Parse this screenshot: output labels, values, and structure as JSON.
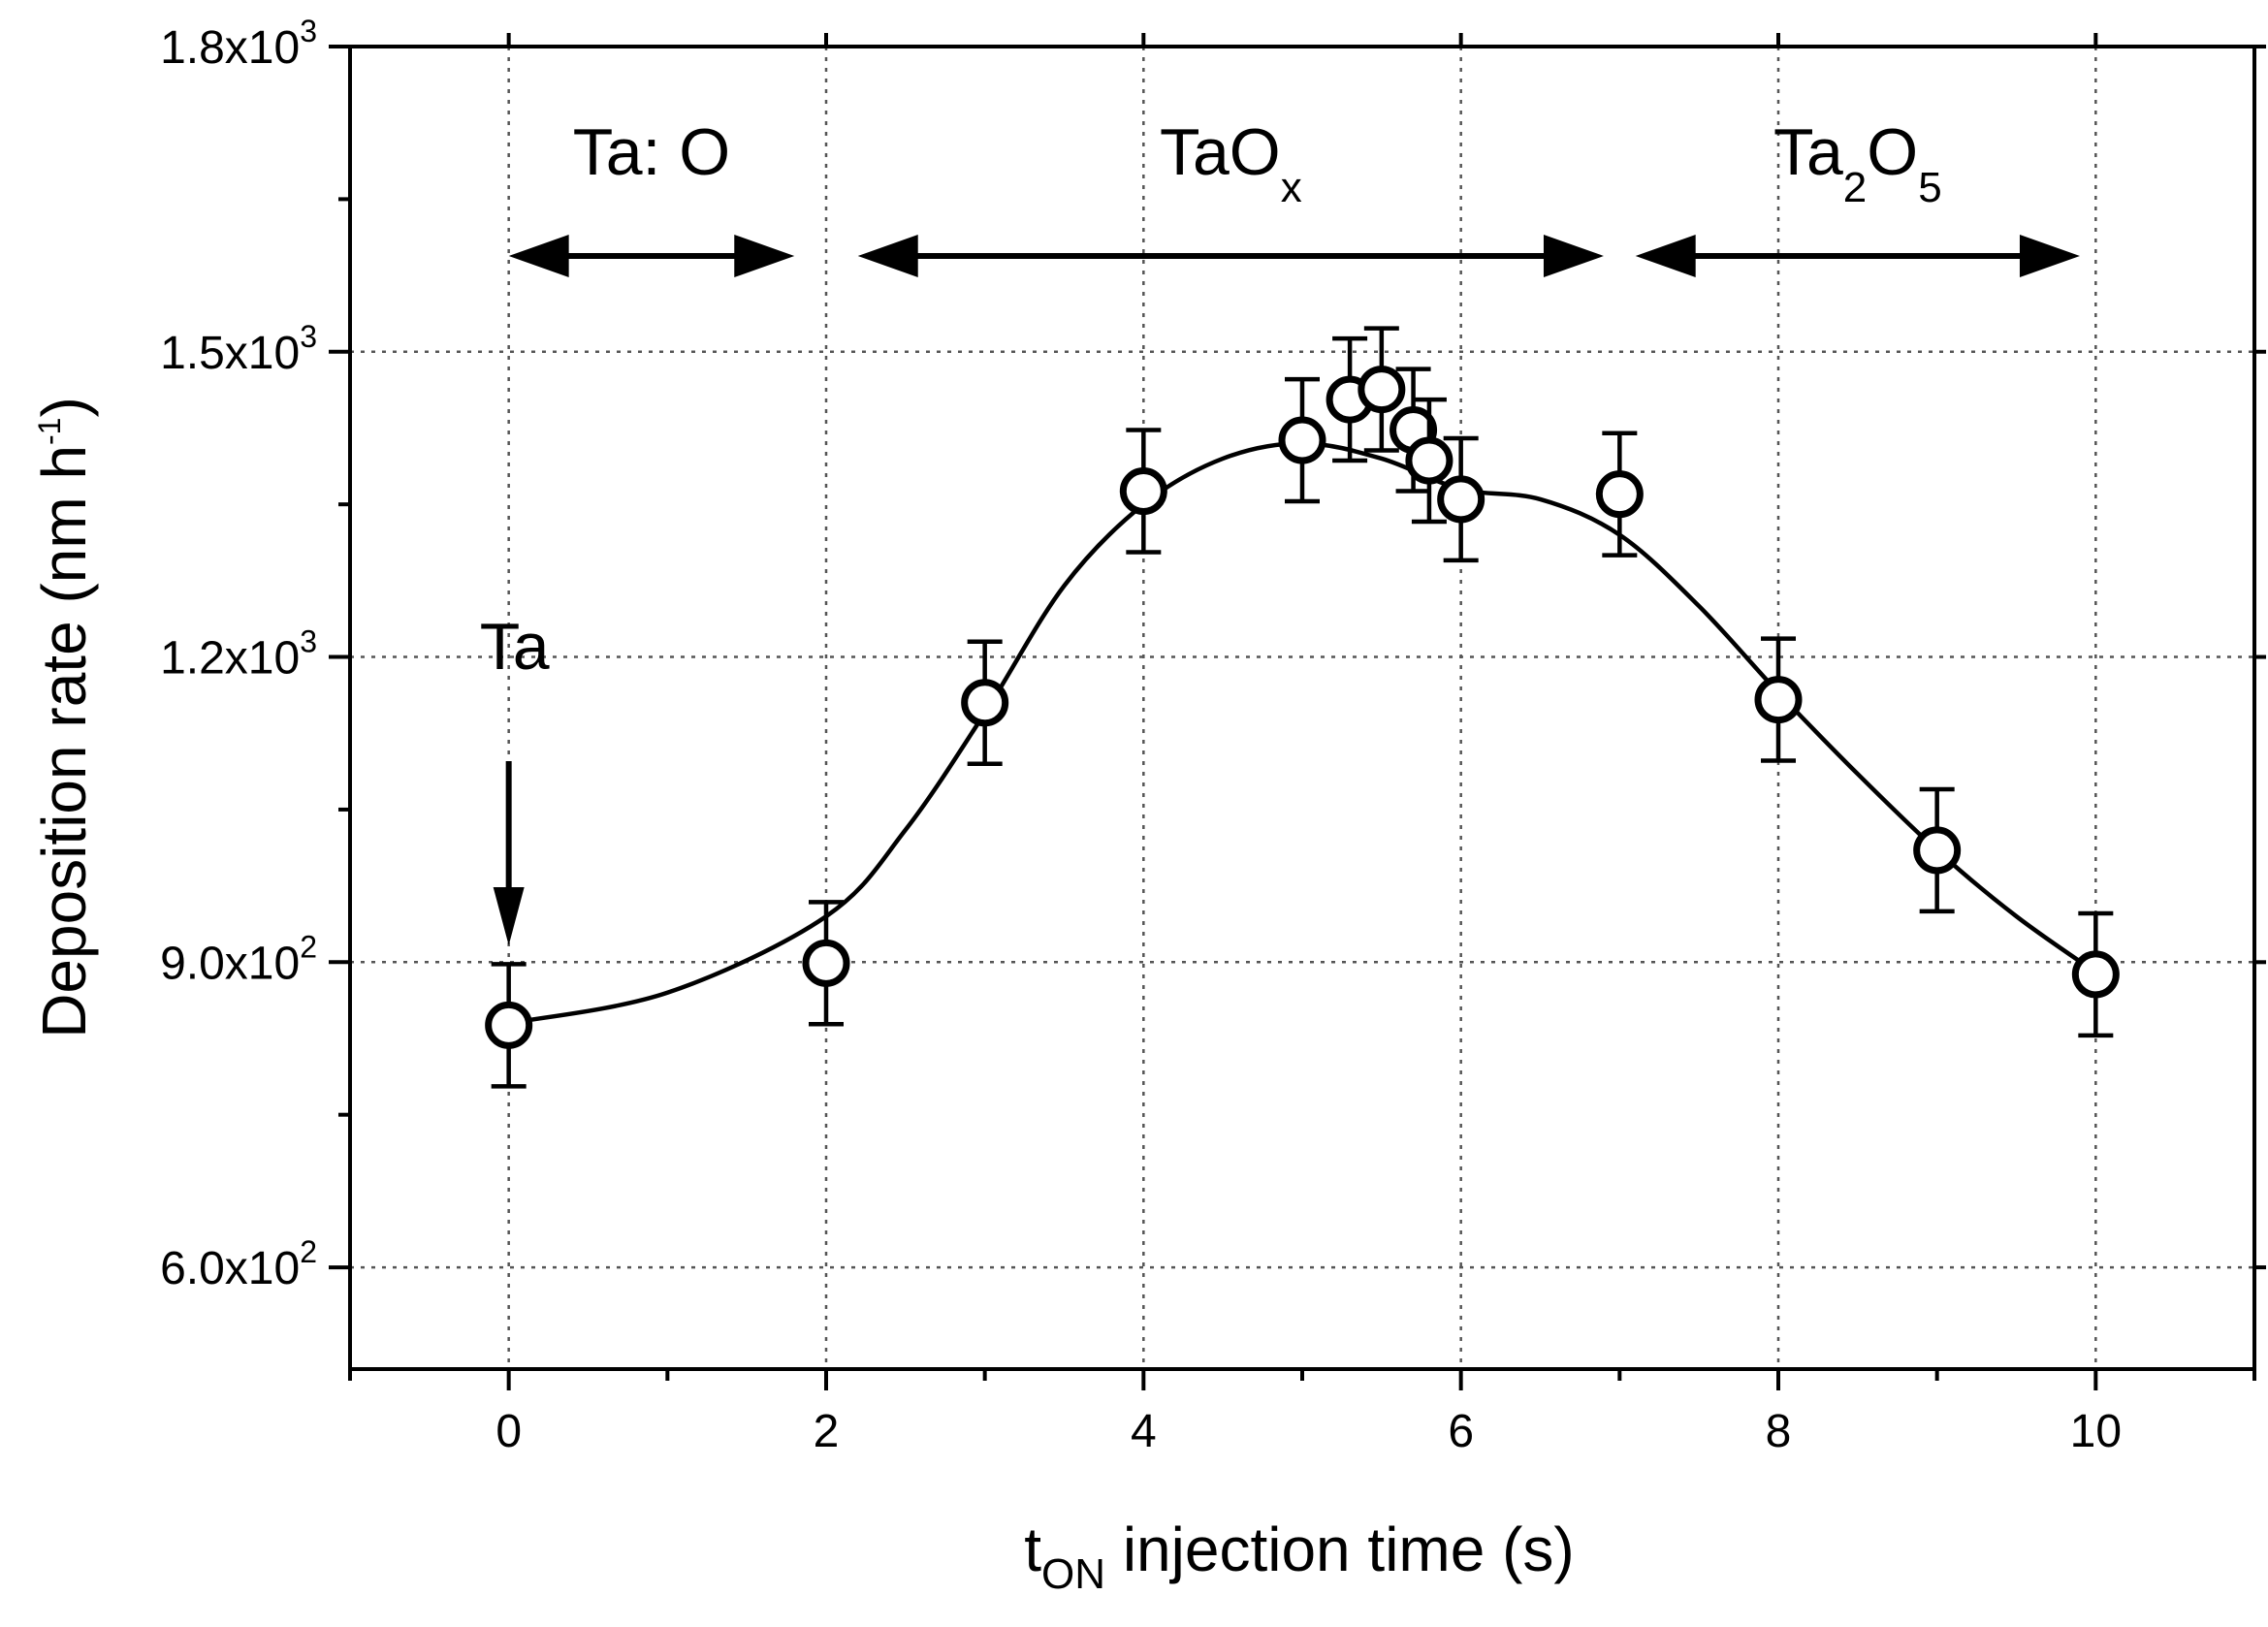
{
  "chart_data": {
    "type": "scatter",
    "title": "",
    "xlabel": {
      "main": "t",
      "sub": "ON",
      "rest": " injection time (s)"
    },
    "ylabel": {
      "main": "Deposition rate (nm h",
      "sup": "-1",
      "end": ")"
    },
    "xlim": [
      -1,
      11
    ],
    "ylim": [
      500,
      1800
    ],
    "x_ticks": [
      0,
      2,
      4,
      6,
      8,
      10
    ],
    "x_tick_labels": [
      "0",
      "2",
      "4",
      "6",
      "8",
      "10"
    ],
    "x_minor_ticks": [
      -1,
      1,
      3,
      5,
      7,
      9,
      11
    ],
    "y_ticks": [
      600,
      900,
      1200,
      1500,
      1800
    ],
    "y_tick_labels": [
      {
        "mant": "6.0x10",
        "exp": "2"
      },
      {
        "mant": "9.0x10",
        "exp": "2"
      },
      {
        "mant": "1.2x10",
        "exp": "3"
      },
      {
        "mant": "1.5x10",
        "exp": "3"
      },
      {
        "mant": "1.8x10",
        "exp": "3"
      }
    ],
    "y_minor_ticks": [
      750,
      1050,
      1350,
      1650
    ],
    "grid": true,
    "series": [
      {
        "name": "Deposition rate",
        "marker": "open-circle",
        "x": [
          0,
          2,
          3,
          4,
          5,
          5.3,
          5.5,
          5.7,
          5.8,
          6,
          7,
          8,
          9,
          10
        ],
        "y": [
          838,
          899,
          1155,
          1363,
          1413,
          1453,
          1463,
          1423,
          1393,
          1355,
          1360,
          1158,
          1010,
          888
        ],
        "err": [
          60,
          60,
          60,
          60,
          60,
          60,
          60,
          60,
          60,
          60,
          60,
          60,
          60,
          60
        ]
      }
    ],
    "fit_curve": {
      "x": [
        0,
        1,
        2,
        2.5,
        3,
        3.5,
        4,
        4.5,
        5,
        5.5,
        6,
        6.5,
        7,
        7.5,
        8,
        8.5,
        9,
        9.5,
        10
      ],
      "y": [
        840,
        870,
        945,
        1030,
        1145,
        1270,
        1350,
        1395,
        1410,
        1395,
        1365,
        1355,
        1320,
        1250,
        1165,
        1085,
        1010,
        945,
        890
      ]
    },
    "annotations": {
      "arrow_label": "Ta",
      "arrow_target_x": 0,
      "regions": [
        {
          "label": "Ta: O",
          "from": 0,
          "to": 1.8
        },
        {
          "label": "TaO",
          "sub": "x",
          "from": 2.2,
          "to": 6.9
        },
        {
          "label": "Ta",
          "sub": "2",
          "label2": "O",
          "sub2": "5",
          "from": 7.1,
          "to": 9.9
        }
      ]
    }
  }
}
